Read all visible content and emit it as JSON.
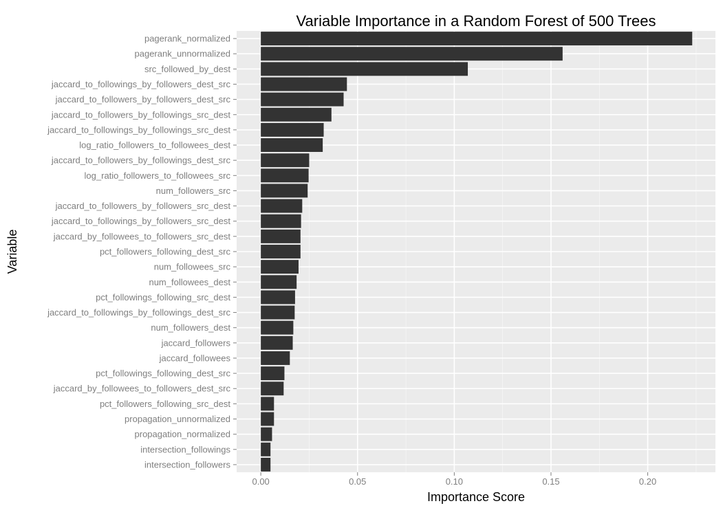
{
  "chart_data": {
    "type": "bar",
    "orientation": "horizontal",
    "title": "Variable Importance in a Random Forest of 500 Trees",
    "xlabel": "Importance Score",
    "ylabel": "Variable",
    "xlim": [
      -0.0125,
      0.235
    ],
    "x_ticks": [
      0.0,
      0.05,
      0.1,
      0.15,
      0.2
    ],
    "x_tick_labels": [
      "0.00",
      "0.05",
      "0.10",
      "0.15",
      "0.20"
    ],
    "grid": true,
    "legend": "none",
    "colors": {
      "bar": "#333333",
      "panel": "#ebebeb",
      "grid": "#ffffff",
      "tick_label": "#7f7f7f"
    },
    "categories": [
      "pagerank_normalized",
      "pagerank_unnormalized",
      "src_followed_by_dest",
      "jaccard_to_followings_by_followers_dest_src",
      "jaccard_to_followers_by_followers_dest_src",
      "jaccard_to_followers_by_followings_src_dest",
      "jaccard_to_followings_by_followings_src_dest",
      "log_ratio_followers_to_followees_dest",
      "jaccard_to_followers_by_followings_dest_src",
      "log_ratio_followers_to_followees_src",
      "num_followers_src",
      "jaccard_to_followers_by_followers_src_dest",
      "jaccard_to_followings_by_followers_src_dest",
      "jaccard_by_followees_to_followers_src_dest",
      "pct_followers_following_dest_src",
      "num_followees_src",
      "num_followees_dest",
      "pct_followings_following_src_dest",
      "jaccard_to_followings_by_followings_dest_src",
      "num_followers_dest",
      "jaccard_followers",
      "jaccard_followees",
      "pct_followings_following_dest_src",
      "jaccard_by_followees_to_followers_dest_src",
      "pct_followers_following_src_dest",
      "propagation_unnormalized",
      "propagation_normalized",
      "intersection_followings",
      "intersection_followers"
    ],
    "values": [
      0.223,
      0.156,
      0.107,
      0.0445,
      0.0428,
      0.0365,
      0.0325,
      0.032,
      0.025,
      0.0247,
      0.0242,
      0.0214,
      0.0208,
      0.0205,
      0.0205,
      0.0195,
      0.0185,
      0.0177,
      0.0175,
      0.0168,
      0.0165,
      0.015,
      0.0122,
      0.0118,
      0.0068,
      0.0068,
      0.0058,
      0.005,
      0.005
    ]
  }
}
